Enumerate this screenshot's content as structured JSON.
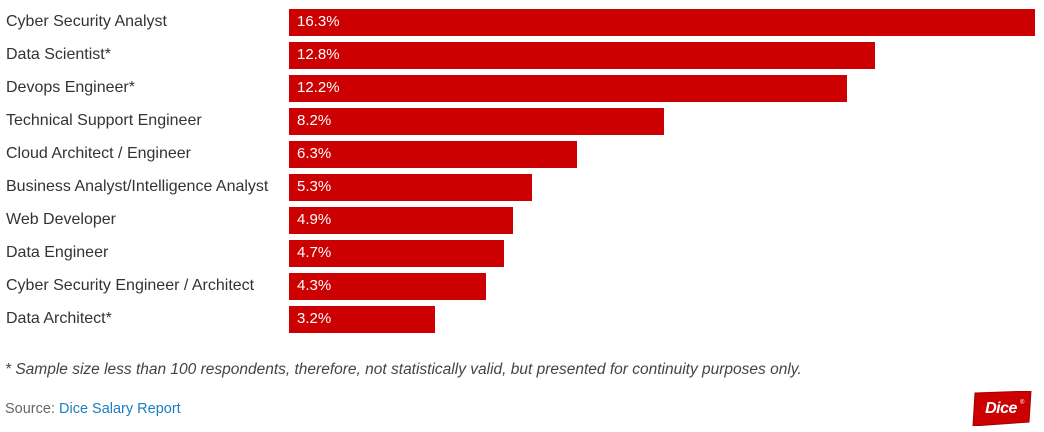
{
  "chart_data": {
    "type": "bar",
    "orientation": "horizontal",
    "categories": [
      "Cyber Security Analyst",
      "Data Scientist*",
      "Devops Engineer*",
      "Technical Support Engineer",
      "Cloud Architect / Engineer",
      "Business Analyst/Intelligence Analyst",
      "Web Developer",
      "Data Engineer",
      "Cyber Security Engineer / Architect",
      "Data Architect*"
    ],
    "values": [
      16.3,
      12.8,
      12.2,
      8.2,
      6.3,
      5.3,
      4.9,
      4.7,
      4.3,
      3.2
    ],
    "value_labels": [
      "16.3%",
      "12.8%",
      "12.2%",
      "8.2%",
      "6.3%",
      "5.3%",
      "4.9%",
      "4.7%",
      "4.3%",
      "3.2%"
    ],
    "xlim": [
      0,
      16.3
    ],
    "title": "",
    "xlabel": "",
    "ylabel": "",
    "bar_color": "#cc0000"
  },
  "footnote": "* Sample size less than 100 respondents, therefore, not statistically valid, but presented for continuity purposes only.",
  "source": {
    "prefix": "Source: ",
    "link_text": "Dice Salary Report"
  },
  "logo": {
    "text": "Dice",
    "mark": "®",
    "color": "#cc0000"
  }
}
